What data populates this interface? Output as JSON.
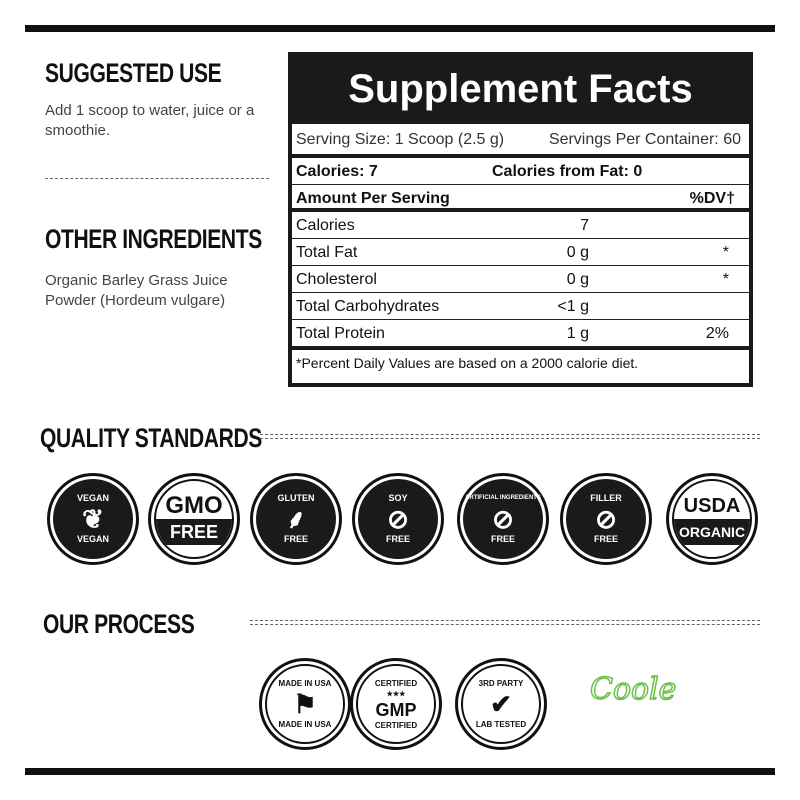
{
  "suggested_use": {
    "heading": "SUGGESTED USE",
    "text": "Add 1 scoop to water, juice or a smoothie."
  },
  "other_ingredients": {
    "heading": "OTHER INGREDIENTS",
    "text": "Organic Barley Grass Juice Powder (Hordeum vulgare)"
  },
  "supplement_facts": {
    "title": "Supplement Facts",
    "serving_size": "Serving Size: 1 Scoop (2.5 g)",
    "servings_per_container": "Servings Per Container: 60",
    "calories": "Calories: 7",
    "calories_from_fat": "Calories from Fat: 0",
    "amount_header": "Amount Per Serving",
    "dv_header": "%DV†",
    "rows": [
      {
        "name": "Calories",
        "amount": "7",
        "dv": ""
      },
      {
        "name": "Total Fat",
        "amount": "0 g",
        "dv": "*"
      },
      {
        "name": "Cholesterol",
        "amount": "0 g",
        "dv": "*"
      },
      {
        "name": "Total Carbohydrates",
        "amount": "<1 g",
        "dv": ""
      },
      {
        "name": "Total Protein",
        "amount": "1 g",
        "dv": "2%"
      }
    ],
    "footnote": "*Percent Daily Values are based on a 2000 calorie diet."
  },
  "quality_standards": {
    "heading": "QUALITY STANDARDS",
    "badges": [
      {
        "top": "VEGAN",
        "bottom": "VEGAN",
        "icon": "leaf-icon"
      },
      {
        "top": "GMO",
        "bottom": "FREE",
        "icon": "none"
      },
      {
        "top": "GLUTEN",
        "bottom": "FREE",
        "icon": "wheat-icon"
      },
      {
        "top": "SOY",
        "bottom": "FREE",
        "icon": "soybean-icon"
      },
      {
        "top": "ARTIFICIAL INGREDIENTS",
        "bottom": "FREE",
        "icon": "dropper-icon"
      },
      {
        "top": "FILLER",
        "bottom": "FREE",
        "icon": "syringe-icon"
      },
      {
        "top": "USDA",
        "bottom": "ORGANIC",
        "icon": "none"
      }
    ]
  },
  "our_process": {
    "heading": "OUR PROCESS",
    "badges": [
      {
        "top": "MADE IN USA",
        "bottom": "MADE IN USA",
        "icon": "us-flag-icon"
      },
      {
        "top": "CERTIFIED",
        "center": "GMP",
        "bottom": "CERTIFIED",
        "icon": "stars-icon"
      },
      {
        "top": "3RD PARTY",
        "bottom": "LAB TESTED",
        "icon": "checkmark-icon"
      }
    ],
    "brand_logo": "Coole",
    "brand_color": "#6cc04a"
  }
}
